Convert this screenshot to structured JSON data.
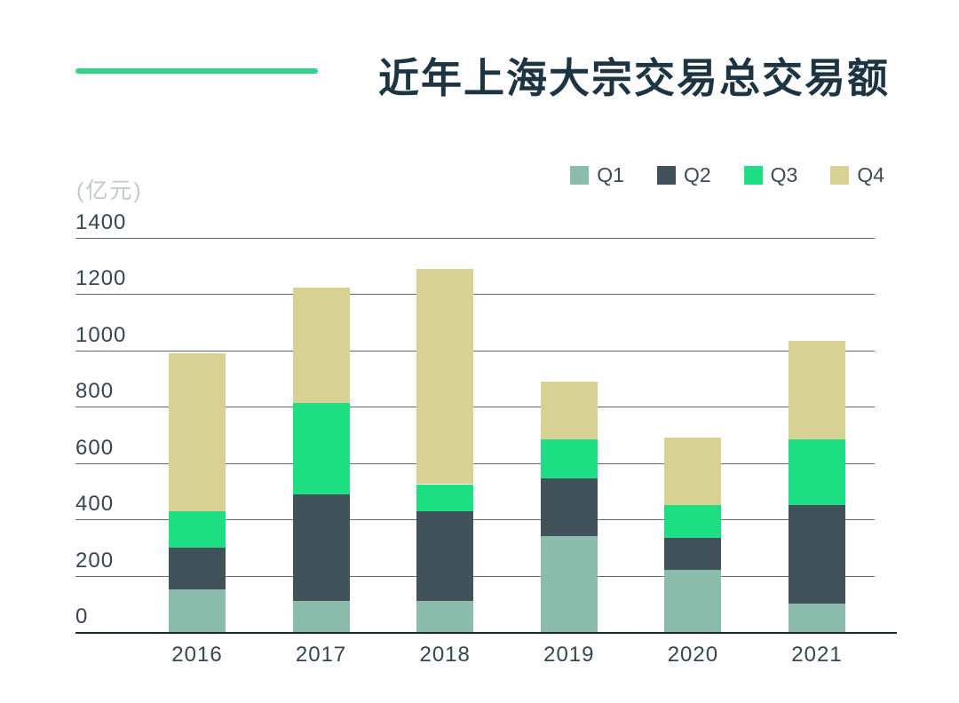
{
  "chart_data": {
    "type": "bar",
    "stacked": true,
    "title": "近年上海大宗交易总交易额",
    "unit": "(亿元)",
    "categories": [
      "2016",
      "2017",
      "2018",
      "2019",
      "2020",
      "2021"
    ],
    "series": [
      {
        "name": "Q1",
        "color": "#8CBCAB",
        "values": [
          150,
          110,
          110,
          340,
          220,
          100
        ]
      },
      {
        "name": "Q2",
        "color": "#42525A",
        "values": [
          150,
          380,
          320,
          205,
          115,
          350
        ]
      },
      {
        "name": "Q3",
        "color": "#1FDF85",
        "values": [
          130,
          325,
          95,
          140,
          115,
          235
        ]
      },
      {
        "name": "Q4",
        "color": "#D8D194",
        "values": [
          560,
          410,
          765,
          205,
          240,
          350
        ]
      }
    ],
    "totals_estimated": [
      990,
      1225,
      1290,
      890,
      690,
      1035
    ],
    "ylim": [
      0,
      1400
    ],
    "ytick_step": 200,
    "grid": true,
    "legend_position": "top-right",
    "colors": {
      "accent_line": "#2FD687",
      "title_text": "#1D3443",
      "axis_text": "#36464F",
      "unit_text": "#C3C9CC",
      "gridline": "#5C6B74",
      "baseline": "#1B2A33"
    }
  }
}
